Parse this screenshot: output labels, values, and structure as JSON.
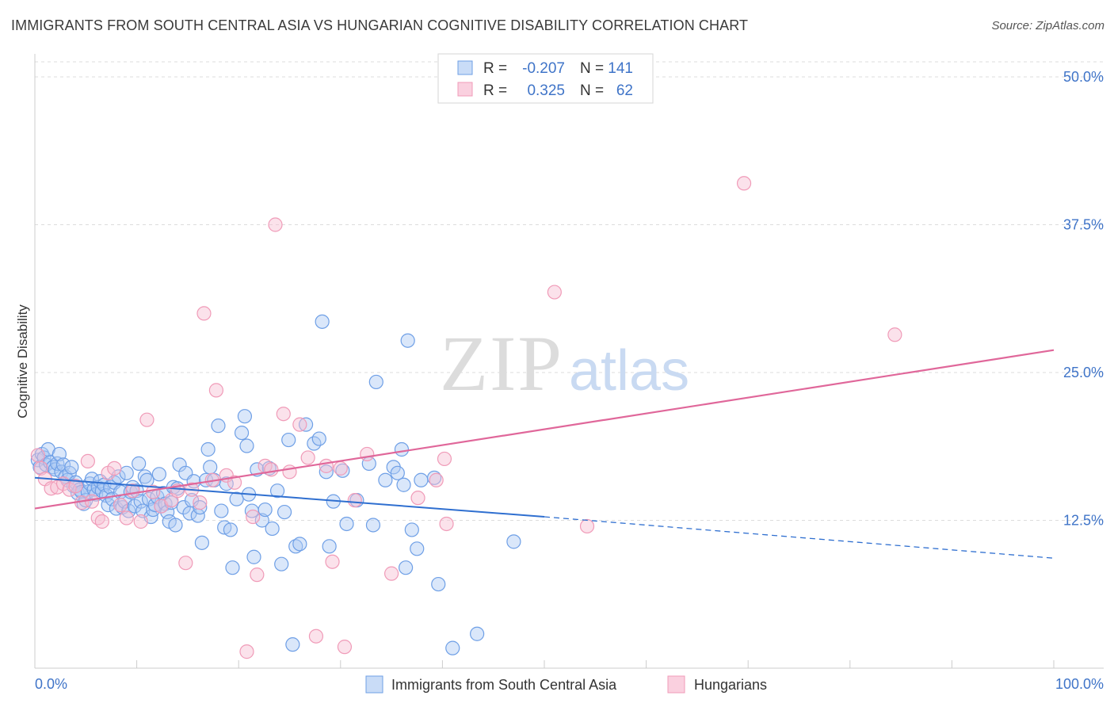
{
  "header": {
    "title": "IMMIGRANTS FROM SOUTH CENTRAL ASIA VS HUNGARIAN COGNITIVE DISABILITY CORRELATION CHART",
    "source": "Source: ZipAtlas.com"
  },
  "watermark": {
    "zip": "ZIP",
    "atlas": "atlas"
  },
  "chart_data": {
    "type": "scatter",
    "ylabel": "Cognitive Disability",
    "xlim": [
      0,
      100
    ],
    "ylim": [
      0,
      50
    ],
    "x_tick_labels": {
      "min": "0.0%",
      "max": "100.0%"
    },
    "y_ticks": [
      {
        "value": 12.5,
        "label": "12.5%"
      },
      {
        "value": 25.0,
        "label": "25.0%"
      },
      {
        "value": 37.5,
        "label": "37.5%"
      },
      {
        "value": 50.0,
        "label": "50.0%"
      }
    ],
    "grid": "horizontal dashed",
    "legend_top": [
      {
        "r_label": "R =",
        "r": "-0.207",
        "n_label": "N =",
        "n": "141",
        "color": "#6e9fe6"
      },
      {
        "r_label": "R =",
        "r": "0.325",
        "n_label": "N =",
        "n": "62",
        "color": "#f09bb8"
      }
    ],
    "series": [
      {
        "name": "Immigrants from South Central Asia",
        "color": "#6e9fe6",
        "line_color": "#2f6fd0",
        "trend": {
          "x0": 0,
          "y0": 16.1,
          "x1": 50,
          "y1": 12.8,
          "x_dash_end": 100,
          "y_dash_end": 9.3
        },
        "points": [
          [
            0.3,
            17.6
          ],
          [
            0.5,
            17.0
          ],
          [
            0.7,
            18.1
          ],
          [
            0.9,
            17.8
          ],
          [
            1.1,
            17.2
          ],
          [
            1.3,
            18.5
          ],
          [
            1.5,
            17.4
          ],
          [
            1.8,
            17.0
          ],
          [
            2.0,
            16.8
          ],
          [
            2.2,
            17.3
          ],
          [
            2.4,
            18.1
          ],
          [
            2.6,
            16.6
          ],
          [
            2.8,
            17.2
          ],
          [
            3.0,
            16.2
          ],
          [
            3.2,
            15.9
          ],
          [
            3.4,
            16.5
          ],
          [
            3.6,
            17.0
          ],
          [
            3.8,
            15.4
          ],
          [
            4.0,
            15.7
          ],
          [
            4.2,
            14.8
          ],
          [
            4.4,
            15.1
          ],
          [
            4.6,
            14.9
          ],
          [
            4.8,
            13.9
          ],
          [
            5.0,
            14.2
          ],
          [
            5.2,
            14.9
          ],
          [
            5.4,
            15.6
          ],
          [
            5.6,
            16.0
          ],
          [
            5.8,
            15.1
          ],
          [
            6.0,
            14.7
          ],
          [
            6.2,
            15.3
          ],
          [
            6.4,
            15.8
          ],
          [
            6.6,
            15.0
          ],
          [
            6.8,
            15.5
          ],
          [
            7.0,
            14.6
          ],
          [
            7.2,
            13.8
          ],
          [
            7.4,
            15.3
          ],
          [
            7.6,
            14.3
          ],
          [
            7.8,
            15.7
          ],
          [
            8.0,
            13.5
          ],
          [
            8.2,
            16.2
          ],
          [
            8.4,
            14.9
          ],
          [
            8.6,
            13.6
          ],
          [
            8.8,
            14.1
          ],
          [
            9.0,
            16.5
          ],
          [
            9.2,
            13.3
          ],
          [
            9.4,
            14.9
          ],
          [
            9.6,
            15.3
          ],
          [
            9.8,
            13.7
          ],
          [
            10.0,
            15.0
          ],
          [
            10.2,
            17.3
          ],
          [
            10.4,
            14.1
          ],
          [
            10.6,
            13.3
          ],
          [
            10.8,
            16.2
          ],
          [
            11.0,
            15.9
          ],
          [
            11.2,
            14.3
          ],
          [
            11.4,
            12.8
          ],
          [
            11.6,
            13.4
          ],
          [
            11.8,
            13.8
          ],
          [
            12.0,
            14.5
          ],
          [
            12.2,
            16.4
          ],
          [
            12.4,
            13.7
          ],
          [
            12.6,
            14.8
          ],
          [
            12.8,
            13.9
          ],
          [
            13.0,
            13.2
          ],
          [
            13.2,
            12.4
          ],
          [
            13.4,
            14.0
          ],
          [
            13.6,
            15.3
          ],
          [
            13.8,
            12.1
          ],
          [
            14.0,
            15.2
          ],
          [
            14.2,
            17.2
          ],
          [
            14.6,
            13.6
          ],
          [
            14.8,
            16.5
          ],
          [
            15.2,
            13.1
          ],
          [
            15.4,
            14.2
          ],
          [
            15.6,
            15.8
          ],
          [
            16.0,
            12.9
          ],
          [
            16.2,
            13.6
          ],
          [
            16.4,
            10.6
          ],
          [
            16.8,
            15.9
          ],
          [
            17.0,
            18.5
          ],
          [
            17.2,
            17.0
          ],
          [
            17.6,
            15.9
          ],
          [
            18.0,
            20.5
          ],
          [
            18.3,
            13.3
          ],
          [
            18.6,
            11.9
          ],
          [
            18.8,
            15.6
          ],
          [
            19.2,
            11.7
          ],
          [
            19.4,
            8.5
          ],
          [
            19.8,
            14.3
          ],
          [
            20.3,
            19.9
          ],
          [
            20.6,
            21.3
          ],
          [
            20.8,
            18.8
          ],
          [
            21.0,
            14.7
          ],
          [
            21.3,
            13.3
          ],
          [
            21.5,
            9.4
          ],
          [
            21.8,
            16.8
          ],
          [
            22.3,
            12.5
          ],
          [
            22.6,
            13.4
          ],
          [
            23.0,
            16.9
          ],
          [
            23.3,
            11.8
          ],
          [
            23.8,
            15.0
          ],
          [
            24.2,
            8.8
          ],
          [
            24.5,
            13.2
          ],
          [
            24.9,
            19.3
          ],
          [
            25.3,
            2.0
          ],
          [
            25.6,
            10.3
          ],
          [
            26.0,
            10.5
          ],
          [
            26.6,
            20.6
          ],
          [
            27.4,
            19.0
          ],
          [
            27.9,
            19.4
          ],
          [
            28.2,
            29.3
          ],
          [
            28.6,
            16.6
          ],
          [
            28.9,
            10.3
          ],
          [
            29.3,
            14.1
          ],
          [
            30.2,
            16.7
          ],
          [
            30.6,
            12.2
          ],
          [
            31.6,
            14.2
          ],
          [
            32.8,
            17.3
          ],
          [
            33.2,
            12.1
          ],
          [
            33.5,
            24.2
          ],
          [
            34.4,
            15.9
          ],
          [
            35.2,
            17.0
          ],
          [
            35.6,
            16.5
          ],
          [
            36.0,
            18.5
          ],
          [
            36.2,
            15.5
          ],
          [
            36.4,
            8.5
          ],
          [
            36.6,
            27.7
          ],
          [
            37.0,
            11.7
          ],
          [
            37.5,
            10.1
          ],
          [
            37.9,
            15.9
          ],
          [
            39.2,
            16.1
          ],
          [
            39.6,
            7.1
          ],
          [
            41.0,
            1.7
          ],
          [
            43.4,
            2.9
          ],
          [
            47.0,
            10.7
          ]
        ]
      },
      {
        "name": "Hungarians",
        "color": "#f09bb8",
        "line_color": "#e0679a",
        "trend": {
          "x0": 0,
          "y0": 13.5,
          "x1": 100,
          "y1": 26.9
        },
        "points": [
          [
            0.3,
            18.0
          ],
          [
            0.6,
            16.9
          ],
          [
            1.0,
            16.0
          ],
          [
            1.6,
            15.2
          ],
          [
            2.2,
            15.3
          ],
          [
            2.8,
            15.6
          ],
          [
            3.4,
            15.1
          ],
          [
            4.0,
            15.4
          ],
          [
            4.6,
            14.0
          ],
          [
            5.2,
            17.5
          ],
          [
            5.6,
            14.1
          ],
          [
            6.2,
            12.7
          ],
          [
            6.6,
            12.4
          ],
          [
            7.2,
            16.5
          ],
          [
            7.8,
            16.9
          ],
          [
            8.4,
            13.8
          ],
          [
            9.0,
            12.7
          ],
          [
            9.6,
            15.0
          ],
          [
            10.4,
            12.4
          ],
          [
            11.0,
            21.0
          ],
          [
            11.6,
            14.9
          ],
          [
            12.4,
            13.7
          ],
          [
            13.4,
            14.2
          ],
          [
            14.0,
            15.0
          ],
          [
            14.8,
            8.9
          ],
          [
            15.4,
            15.1
          ],
          [
            16.2,
            14.0
          ],
          [
            16.6,
            30.0
          ],
          [
            17.4,
            15.9
          ],
          [
            17.8,
            23.5
          ],
          [
            18.8,
            16.3
          ],
          [
            19.6,
            15.7
          ],
          [
            20.8,
            1.4
          ],
          [
            21.4,
            12.8
          ],
          [
            21.8,
            7.9
          ],
          [
            22.6,
            17.1
          ],
          [
            23.2,
            16.8
          ],
          [
            23.6,
            37.5
          ],
          [
            24.4,
            21.5
          ],
          [
            25.0,
            16.6
          ],
          [
            26.0,
            20.6
          ],
          [
            26.8,
            17.8
          ],
          [
            27.6,
            2.7
          ],
          [
            28.6,
            17.1
          ],
          [
            29.2,
            9.0
          ],
          [
            30.0,
            16.9
          ],
          [
            30.4,
            1.8
          ],
          [
            31.4,
            14.2
          ],
          [
            32.6,
            18.1
          ],
          [
            35.0,
            8.0
          ],
          [
            37.6,
            14.4
          ],
          [
            39.4,
            15.9
          ],
          [
            40.2,
            17.7
          ],
          [
            40.4,
            12.2
          ],
          [
            51.0,
            31.8
          ],
          [
            54.2,
            12.0
          ],
          [
            69.6,
            41.0
          ],
          [
            84.4,
            28.2
          ]
        ]
      }
    ]
  }
}
